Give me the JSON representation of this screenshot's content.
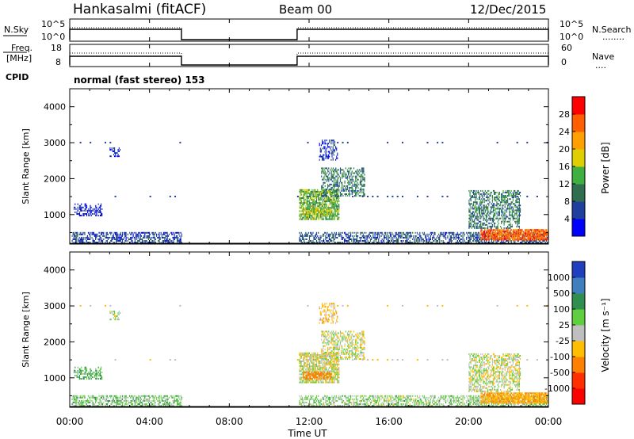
{
  "header": {
    "station": "Hankasalmi (fitACF)",
    "beam": "Beam 00",
    "date": "12/Dec/2015"
  },
  "top_panels": {
    "nsky_label": "N.Sky",
    "nsearch_label": "N.Search",
    "nsearch_line": "........",
    "noise_ticks": [
      "10^5",
      "10^0"
    ],
    "freq_label_1": "Freq.",
    "freq_label_2": "[MHz]",
    "freq_ticks": [
      "18",
      "8"
    ],
    "nave_label": "Nave",
    "nave_line": "....",
    "nave_ticks": [
      "60",
      "0"
    ],
    "cpid_label": "CPID",
    "cpid_text": "normal (fast stereo) 153"
  },
  "time_axis": {
    "ticks": [
      "00:00",
      "04:00",
      "08:00",
      "12:00",
      "16:00",
      "20:00",
      "00:00"
    ],
    "label": "Time UT"
  },
  "range_axis": {
    "label": "Slant Range [km]",
    "ticks": [
      "1000",
      "2000",
      "3000",
      "4000"
    ]
  },
  "power_scale": {
    "label": "Power [dB]",
    "ticks": [
      "4",
      "8",
      "12",
      "16",
      "20",
      "24",
      "28"
    ],
    "colors": [
      "#0000ff",
      "#1f3f9f",
      "#2f6f4f",
      "#3faf3f",
      "#dfcf00",
      "#ff9f00",
      "#ff5f00",
      "#ff0000"
    ]
  },
  "velocity_scale": {
    "label": "Velocity [m s⁻¹]",
    "ticks": [
      "1000",
      "500",
      "100",
      "25",
      "-25",
      "-100",
      "-500",
      "-1000"
    ],
    "colors": [
      "#1f3fbf",
      "#3f7fbf",
      "#2f8f4f",
      "#5fcf3f",
      "#bfbfbf",
      "#ffbf00",
      "#ff7f00",
      "#ff2f00",
      "#ff0000"
    ]
  },
  "chart_data": {
    "type": "heatmap",
    "x_range_hours": [
      0,
      24
    ],
    "y_range_km": [
      180,
      4500
    ],
    "operation_windows_hours": [
      [
        0.0,
        5.6
      ],
      [
        11.4,
        24.0
      ]
    ],
    "scatter_regions": [
      {
        "t_start": 0.1,
        "t_end": 5.6,
        "r_start": 200,
        "r_end": 500,
        "density": 0.55,
        "power": 6,
        "velocity": 60
      },
      {
        "t_start": 0.2,
        "t_end": 1.6,
        "r_start": 950,
        "r_end": 1300,
        "density": 0.45,
        "power": 3,
        "velocity": 120
      },
      {
        "t_start": 2.0,
        "t_end": 2.5,
        "r_start": 2600,
        "r_end": 2850,
        "density": 0.4,
        "power": 3,
        "velocity": 0
      },
      {
        "t_start": 11.5,
        "t_end": 13.5,
        "r_start": 850,
        "r_end": 1700,
        "density": 0.75,
        "power": 14,
        "velocity": -5
      },
      {
        "t_start": 11.7,
        "t_end": 13.1,
        "r_start": 950,
        "r_end": 1150,
        "density": 0.7,
        "power": 17,
        "velocity": -200
      },
      {
        "t_start": 12.6,
        "t_end": 14.8,
        "r_start": 1500,
        "r_end": 2300,
        "density": 0.45,
        "power": 10,
        "velocity": 0
      },
      {
        "t_start": 12.5,
        "t_end": 13.4,
        "r_start": 2500,
        "r_end": 3050,
        "density": 0.35,
        "power": 5,
        "velocity": -60
      },
      {
        "t_start": 11.5,
        "t_end": 24.0,
        "r_start": 200,
        "r_end": 500,
        "density": 0.5,
        "power": 7,
        "velocity": 40
      },
      {
        "t_start": 20.0,
        "t_end": 22.6,
        "r_start": 600,
        "r_end": 1650,
        "density": 0.5,
        "power": 10,
        "velocity": 0
      },
      {
        "t_start": 20.6,
        "t_end": 24.0,
        "r_start": 280,
        "r_end": 560,
        "density": 0.85,
        "power": 26,
        "velocity": -90
      }
    ],
    "sparse_lines_km": [
      1500,
      3000
    ]
  }
}
